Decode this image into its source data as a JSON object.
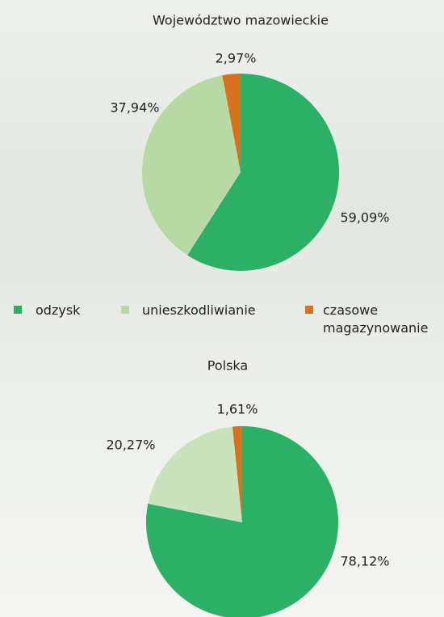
{
  "chart_data": [
    {
      "type": "pie",
      "title": "Województwo mazowieckie",
      "categories": [
        "odzysk",
        "unieszkodliwianie",
        "czasowe magazynowanie"
      ],
      "values": [
        59.09,
        37.94,
        2.97
      ],
      "value_labels": [
        "59,09%",
        "37,94%",
        "2,97%"
      ],
      "colors": [
        "#2cb066",
        "#b7daa5",
        "#d9711c"
      ]
    },
    {
      "type": "pie",
      "title": "Polska",
      "values": [
        78.12,
        20.27,
        1.61
      ],
      "value_labels": [
        "78,12%",
        "20,27%",
        "1,61%"
      ],
      "colors": [
        "#2cb066",
        "#c9e4bd",
        "#d9711c"
      ]
    }
  ]
}
